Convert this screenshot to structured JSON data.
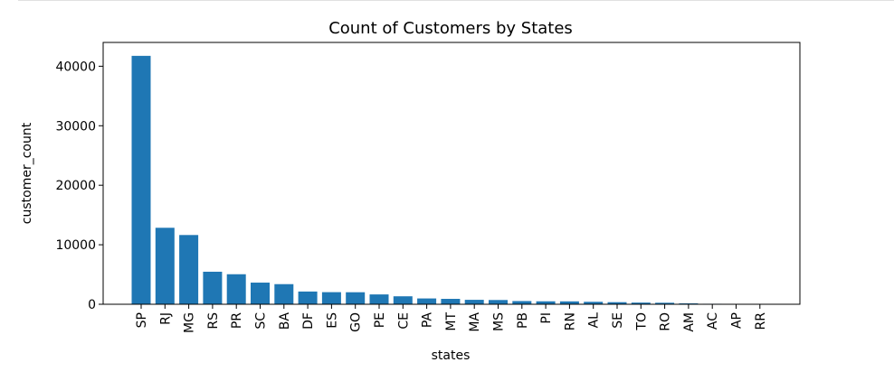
{
  "chart_data": {
    "type": "bar",
    "title": "Count of Customers by States",
    "xlabel": "states",
    "ylabel": "customer_count",
    "categories": [
      "SP",
      "RJ",
      "MG",
      "RS",
      "PR",
      "SC",
      "BA",
      "DF",
      "ES",
      "GO",
      "PE",
      "CE",
      "PA",
      "MT",
      "MA",
      "MS",
      "PB",
      "PI",
      "RN",
      "AL",
      "SE",
      "TO",
      "RO",
      "AM",
      "AC",
      "AP",
      "RR"
    ],
    "values": [
      41746,
      12852,
      11635,
      5466,
      5045,
      3637,
      3380,
      2140,
      2033,
      2020,
      1652,
      1336,
      975,
      907,
      747,
      715,
      536,
      495,
      485,
      413,
      350,
      280,
      253,
      148,
      81,
      68,
      46
    ],
    "ylim": [
      0,
      44000
    ],
    "yticks": [
      0,
      10000,
      20000,
      30000,
      40000
    ],
    "bar_color": "#1f77b4",
    "grid": false,
    "legend": "none"
  }
}
